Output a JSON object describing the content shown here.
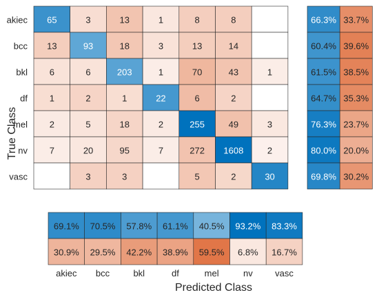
{
  "chart_data": {
    "type": "heatmap",
    "xlabel": "Predicted Class",
    "ylabel": "True Class",
    "classes": [
      "akiec",
      "bcc",
      "bkl",
      "df",
      "mel",
      "nv",
      "vasc"
    ],
    "matrix": [
      [
        65,
        3,
        13,
        1,
        8,
        8,
        null
      ],
      [
        13,
        93,
        18,
        3,
        13,
        14,
        null
      ],
      [
        6,
        6,
        203,
        1,
        70,
        43,
        1
      ],
      [
        1,
        2,
        1,
        22,
        6,
        2,
        null
      ],
      [
        2,
        5,
        18,
        2,
        255,
        49,
        3
      ],
      [
        7,
        20,
        95,
        7,
        272,
        1608,
        2
      ],
      [
        null,
        3,
        3,
        null,
        5,
        2,
        30
      ]
    ],
    "row_summary": {
      "correct": [
        "66.3%",
        "60.4%",
        "61.5%",
        "64.7%",
        "76.3%",
        "80.0%",
        "69.8%"
      ],
      "incorrect": [
        "33.7%",
        "39.6%",
        "38.5%",
        "35.3%",
        "23.7%",
        "20.0%",
        "30.2%"
      ]
    },
    "column_summary": {
      "correct": [
        "69.1%",
        "70.5%",
        "57.8%",
        "61.1%",
        "40.5%",
        "93.2%",
        "83.3%"
      ],
      "incorrect": [
        "30.9%",
        "29.5%",
        "42.2%",
        "38.9%",
        "59.5%",
        "6.8%",
        "16.7%"
      ]
    },
    "colors": {
      "correct_high": "#0072bd",
      "correct_low": "#ffffff",
      "incorrect_high": "#d95319",
      "incorrect_low": "#ffffff",
      "grid": "#262626",
      "text_dark": "#262626",
      "text_light": "#ffffff"
    }
  }
}
